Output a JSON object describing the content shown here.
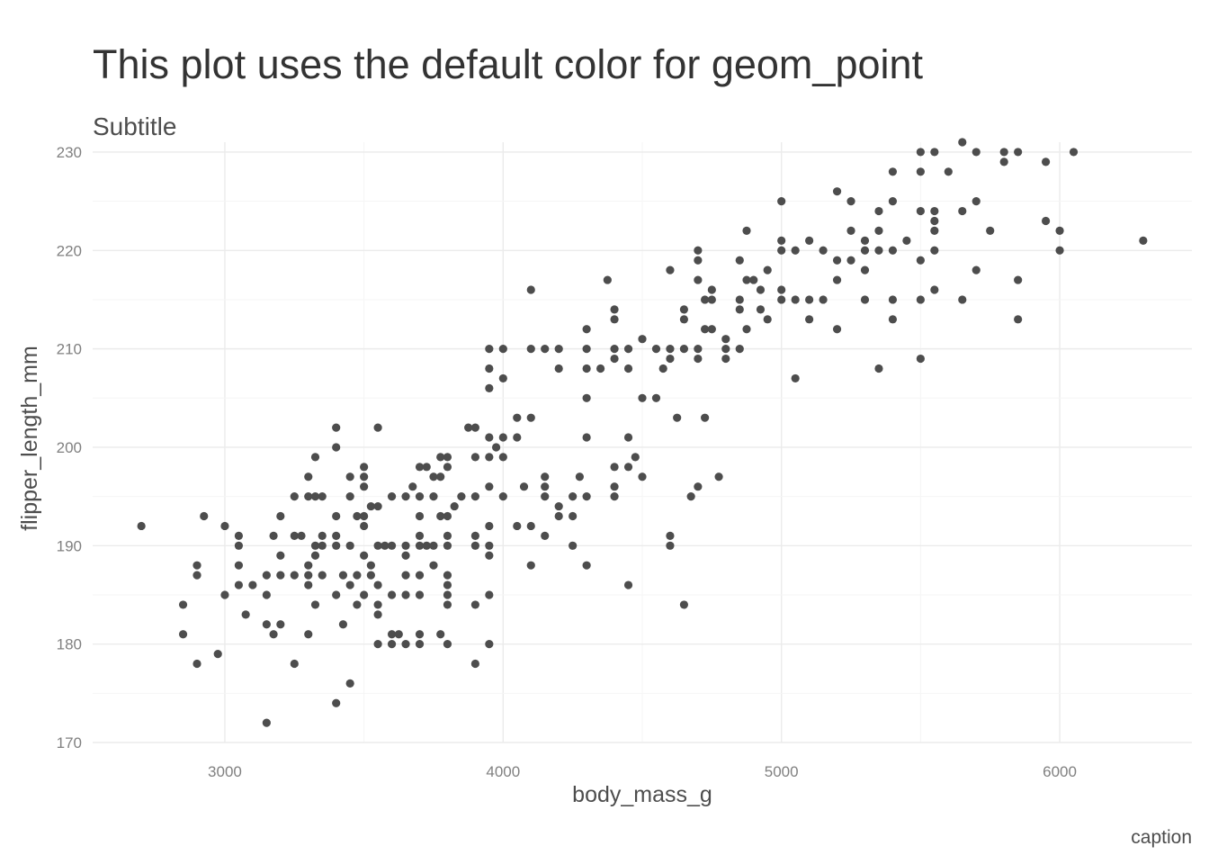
{
  "chart_data": {
    "type": "scatter",
    "title": "This plot uses the default color for geom_point",
    "subtitle": "Subtitle",
    "caption": "caption",
    "xlabel": "body_mass_g",
    "ylabel": "flipper_length_mm",
    "xlim": [
      2525,
      6475
    ],
    "ylim": [
      170,
      231
    ],
    "xticks": [
      3000,
      4000,
      5000,
      6000
    ],
    "yticks": [
      170,
      180,
      190,
      200,
      210,
      220,
      230
    ],
    "grid": true,
    "point_color": "#4d4d4d",
    "points": [
      [
        2700,
        192
      ],
      [
        2850,
        184
      ],
      [
        2850,
        181
      ],
      [
        2900,
        188
      ],
      [
        2900,
        187
      ],
      [
        2900,
        178
      ],
      [
        2925,
        193
      ],
      [
        2975,
        179
      ],
      [
        3000,
        192
      ],
      [
        3000,
        185
      ],
      [
        3050,
        191
      ],
      [
        3050,
        190
      ],
      [
        3050,
        188
      ],
      [
        3050,
        186
      ],
      [
        3075,
        183
      ],
      [
        3100,
        186
      ],
      [
        3150,
        187
      ],
      [
        3150,
        185
      ],
      [
        3150,
        182
      ],
      [
        3150,
        172
      ],
      [
        3175,
        191
      ],
      [
        3175,
        181
      ],
      [
        3200,
        193
      ],
      [
        3200,
        189
      ],
      [
        3200,
        187
      ],
      [
        3200,
        182
      ],
      [
        3250,
        195
      ],
      [
        3250,
        191
      ],
      [
        3250,
        187
      ],
      [
        3250,
        178
      ],
      [
        3275,
        191
      ],
      [
        3300,
        197
      ],
      [
        3300,
        195
      ],
      [
        3300,
        188
      ],
      [
        3300,
        187
      ],
      [
        3300,
        186
      ],
      [
        3300,
        181
      ],
      [
        3325,
        199
      ],
      [
        3325,
        195
      ],
      [
        3325,
        190
      ],
      [
        3325,
        189
      ],
      [
        3325,
        184
      ],
      [
        3350,
        195
      ],
      [
        3350,
        191
      ],
      [
        3350,
        190
      ],
      [
        3350,
        187
      ],
      [
        3400,
        202
      ],
      [
        3400,
        200
      ],
      [
        3400,
        193
      ],
      [
        3400,
        191
      ],
      [
        3400,
        190
      ],
      [
        3400,
        185
      ],
      [
        3400,
        174
      ],
      [
        3425,
        187
      ],
      [
        3425,
        182
      ],
      [
        3450,
        197
      ],
      [
        3450,
        195
      ],
      [
        3450,
        190
      ],
      [
        3450,
        186
      ],
      [
        3450,
        176
      ],
      [
        3475,
        193
      ],
      [
        3475,
        187
      ],
      [
        3475,
        184
      ],
      [
        3500,
        198
      ],
      [
        3500,
        197
      ],
      [
        3500,
        196
      ],
      [
        3500,
        193
      ],
      [
        3500,
        192
      ],
      [
        3500,
        189
      ],
      [
        3500,
        185
      ],
      [
        3525,
        194
      ],
      [
        3525,
        188
      ],
      [
        3525,
        187
      ],
      [
        3550,
        202
      ],
      [
        3550,
        194
      ],
      [
        3550,
        190
      ],
      [
        3550,
        186
      ],
      [
        3550,
        184
      ],
      [
        3550,
        183
      ],
      [
        3550,
        180
      ],
      [
        3575,
        190
      ],
      [
        3600,
        195
      ],
      [
        3600,
        190
      ],
      [
        3600,
        185
      ],
      [
        3600,
        181
      ],
      [
        3600,
        180
      ],
      [
        3625,
        181
      ],
      [
        3650,
        195
      ],
      [
        3650,
        190
      ],
      [
        3650,
        189
      ],
      [
        3650,
        187
      ],
      [
        3650,
        185
      ],
      [
        3650,
        180
      ],
      [
        3675,
        196
      ],
      [
        3700,
        198
      ],
      [
        3700,
        195
      ],
      [
        3700,
        193
      ],
      [
        3700,
        191
      ],
      [
        3700,
        190
      ],
      [
        3700,
        187
      ],
      [
        3700,
        185
      ],
      [
        3700,
        181
      ],
      [
        3700,
        180
      ],
      [
        3725,
        198
      ],
      [
        3725,
        190
      ],
      [
        3750,
        197
      ],
      [
        3750,
        195
      ],
      [
        3750,
        190
      ],
      [
        3750,
        188
      ],
      [
        3775,
        199
      ],
      [
        3775,
        197
      ],
      [
        3775,
        193
      ],
      [
        3775,
        181
      ],
      [
        3800,
        199
      ],
      [
        3800,
        198
      ],
      [
        3800,
        193
      ],
      [
        3800,
        191
      ],
      [
        3800,
        190
      ],
      [
        3800,
        187
      ],
      [
        3800,
        186
      ],
      [
        3800,
        185
      ],
      [
        3800,
        184
      ],
      [
        3800,
        180
      ],
      [
        3825,
        194
      ],
      [
        3850,
        195
      ],
      [
        3875,
        202
      ],
      [
        3900,
        202
      ],
      [
        3900,
        199
      ],
      [
        3900,
        195
      ],
      [
        3900,
        191
      ],
      [
        3900,
        190
      ],
      [
        3900,
        184
      ],
      [
        3900,
        178
      ],
      [
        3950,
        210
      ],
      [
        3950,
        208
      ],
      [
        3950,
        206
      ],
      [
        3950,
        201
      ],
      [
        3950,
        199
      ],
      [
        3950,
        196
      ],
      [
        3950,
        192
      ],
      [
        3950,
        190
      ],
      [
        3950,
        189
      ],
      [
        3950,
        185
      ],
      [
        3950,
        180
      ],
      [
        3975,
        200
      ],
      [
        4000,
        210
      ],
      [
        4000,
        207
      ],
      [
        4000,
        201
      ],
      [
        4000,
        199
      ],
      [
        4000,
        195
      ],
      [
        4050,
        203
      ],
      [
        4050,
        201
      ],
      [
        4050,
        192
      ],
      [
        4075,
        196
      ],
      [
        4100,
        216
      ],
      [
        4100,
        210
      ],
      [
        4100,
        203
      ],
      [
        4100,
        192
      ],
      [
        4100,
        188
      ],
      [
        4150,
        210
      ],
      [
        4150,
        197
      ],
      [
        4150,
        196
      ],
      [
        4150,
        195
      ],
      [
        4150,
        191
      ],
      [
        4200,
        210
      ],
      [
        4200,
        208
      ],
      [
        4200,
        194
      ],
      [
        4200,
        193
      ],
      [
        4250,
        195
      ],
      [
        4250,
        193
      ],
      [
        4250,
        190
      ],
      [
        4275,
        197
      ],
      [
        4300,
        212
      ],
      [
        4300,
        210
      ],
      [
        4300,
        208
      ],
      [
        4300,
        205
      ],
      [
        4300,
        201
      ],
      [
        4300,
        195
      ],
      [
        4300,
        188
      ],
      [
        4350,
        208
      ],
      [
        4375,
        217
      ],
      [
        4400,
        214
      ],
      [
        4400,
        213
      ],
      [
        4400,
        210
      ],
      [
        4400,
        209
      ],
      [
        4400,
        198
      ],
      [
        4400,
        196
      ],
      [
        4400,
        195
      ],
      [
        4450,
        210
      ],
      [
        4450,
        208
      ],
      [
        4450,
        201
      ],
      [
        4450,
        198
      ],
      [
        4450,
        186
      ],
      [
        4475,
        199
      ],
      [
        4500,
        211
      ],
      [
        4500,
        205
      ],
      [
        4500,
        197
      ],
      [
        4550,
        210
      ],
      [
        4550,
        205
      ],
      [
        4575,
        208
      ],
      [
        4600,
        218
      ],
      [
        4600,
        210
      ],
      [
        4600,
        209
      ],
      [
        4600,
        191
      ],
      [
        4600,
        190
      ],
      [
        4625,
        203
      ],
      [
        4650,
        214
      ],
      [
        4650,
        213
      ],
      [
        4650,
        210
      ],
      [
        4650,
        184
      ],
      [
        4675,
        195
      ],
      [
        4700,
        220
      ],
      [
        4700,
        219
      ],
      [
        4700,
        217
      ],
      [
        4700,
        210
      ],
      [
        4700,
        209
      ],
      [
        4700,
        196
      ],
      [
        4725,
        215
      ],
      [
        4725,
        212
      ],
      [
        4725,
        203
      ],
      [
        4750,
        216
      ],
      [
        4750,
        212
      ],
      [
        4750,
        215
      ],
      [
        4775,
        197
      ],
      [
        4800,
        211
      ],
      [
        4800,
        210
      ],
      [
        4800,
        209
      ],
      [
        4850,
        219
      ],
      [
        4850,
        215
      ],
      [
        4850,
        214
      ],
      [
        4850,
        210
      ],
      [
        4875,
        222
      ],
      [
        4875,
        217
      ],
      [
        4875,
        212
      ],
      [
        4900,
        217
      ],
      [
        4925,
        216
      ],
      [
        4925,
        214
      ],
      [
        4950,
        218
      ],
      [
        4950,
        213
      ],
      [
        5000,
        225
      ],
      [
        5000,
        221
      ],
      [
        5000,
        220
      ],
      [
        5000,
        216
      ],
      [
        5000,
        215
      ],
      [
        5050,
        220
      ],
      [
        5050,
        215
      ],
      [
        5050,
        207
      ],
      [
        5100,
        221
      ],
      [
        5100,
        215
      ],
      [
        5100,
        213
      ],
      [
        5150,
        220
      ],
      [
        5150,
        215
      ],
      [
        5200,
        226
      ],
      [
        5200,
        219
      ],
      [
        5200,
        217
      ],
      [
        5200,
        212
      ],
      [
        5250,
        225
      ],
      [
        5250,
        222
      ],
      [
        5250,
        219
      ],
      [
        5300,
        221
      ],
      [
        5300,
        220
      ],
      [
        5300,
        218
      ],
      [
        5300,
        215
      ],
      [
        5350,
        224
      ],
      [
        5350,
        222
      ],
      [
        5350,
        220
      ],
      [
        5350,
        208
      ],
      [
        5400,
        228
      ],
      [
        5400,
        225
      ],
      [
        5400,
        220
      ],
      [
        5400,
        215
      ],
      [
        5400,
        213
      ],
      [
        5450,
        221
      ],
      [
        5500,
        230
      ],
      [
        5500,
        228
      ],
      [
        5500,
        224
      ],
      [
        5500,
        219
      ],
      [
        5500,
        215
      ],
      [
        5500,
        209
      ],
      [
        5550,
        230
      ],
      [
        5550,
        224
      ],
      [
        5550,
        223
      ],
      [
        5550,
        222
      ],
      [
        5550,
        220
      ],
      [
        5550,
        216
      ],
      [
        5600,
        228
      ],
      [
        5650,
        231
      ],
      [
        5650,
        224
      ],
      [
        5650,
        215
      ],
      [
        5700,
        230
      ],
      [
        5700,
        225
      ],
      [
        5700,
        218
      ],
      [
        5750,
        222
      ],
      [
        5800,
        230
      ],
      [
        5800,
        229
      ],
      [
        5850,
        230
      ],
      [
        5850,
        217
      ],
      [
        5850,
        213
      ],
      [
        5950,
        229
      ],
      [
        5950,
        223
      ],
      [
        6000,
        222
      ],
      [
        6000,
        220
      ],
      [
        6050,
        230
      ],
      [
        6300,
        221
      ]
    ]
  }
}
